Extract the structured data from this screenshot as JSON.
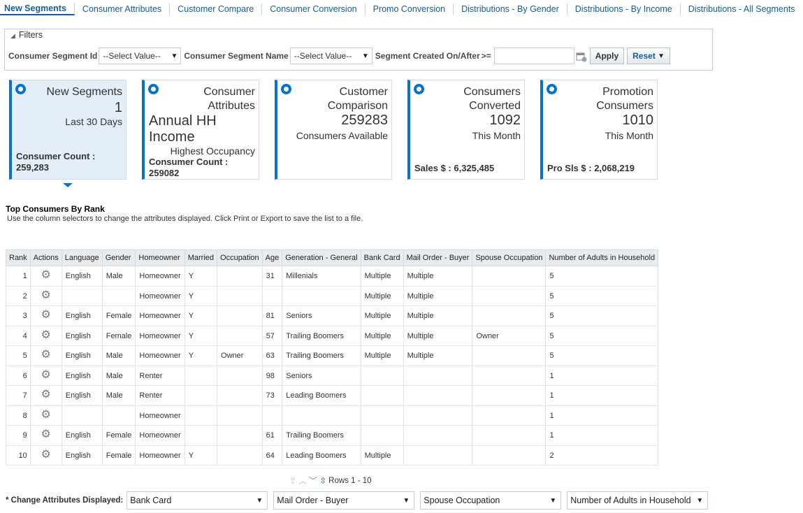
{
  "tabs": [
    "New Segments",
    "Consumer Attributes",
    "Customer Compare",
    "Consumer Conversion",
    "Promo Conversion",
    "Distributions - By Gender",
    "Distributions - By Income",
    "Distributions - All Segments"
  ],
  "filters": {
    "title": "Filters",
    "segment_id_label": "Consumer Segment Id",
    "segment_id_value": "--Select Value--",
    "segment_name_label": "Consumer Segment Name",
    "segment_name_value": "--Select Value--",
    "created_label": "Segment Created On/After",
    "created_op": ">=",
    "apply": "Apply",
    "reset": "Reset"
  },
  "cards": {
    "c1": {
      "title": "New Segments",
      "value": "1",
      "sub": "Last 30 Days",
      "bottom1": "Consumer Count :",
      "bottom2": "259,283"
    },
    "c2": {
      "title1": "Consumer",
      "title2": "Attributes",
      "value1": "Annual HH",
      "value2": "Income",
      "sub": "Highest Occupancy",
      "bottom1": "Consumer Count :",
      "bottom2": "259082"
    },
    "c3": {
      "title1": "Customer",
      "title2": "Comparison",
      "value": "259283",
      "sub": "Consumers Available"
    },
    "c4": {
      "title1": "Consumers",
      "title2": "Converted",
      "value": "1092",
      "sub": "This Month",
      "bottom": "Sales $ : 6,325,485"
    },
    "c5": {
      "title1": "Promotion",
      "title2": "Consumers",
      "value": "1010",
      "sub": "This Month",
      "bottom": "Pro Sls $ : 2,068,219"
    }
  },
  "section": {
    "title": "Top Consumers By Rank",
    "desc": "Use the column selectors to change the attributes displayed. Click Print or Export to save the list to a file."
  },
  "table": {
    "headers": [
      "Rank",
      "Actions",
      "Language",
      "Gender",
      "Homeowner",
      "Married",
      "Occupation",
      "Age",
      "Generation - General",
      "Bank Card",
      "Mail Order - Buyer",
      "Spouse Occupation",
      "Number of Adults in Household"
    ],
    "rows": [
      [
        "1",
        "",
        "English",
        "Male",
        "Homeowner",
        "Y",
        "",
        "31",
        "Millenials",
        "Multiple",
        "Multiple",
        "",
        "5"
      ],
      [
        "2",
        "",
        "",
        "",
        "Homeowner",
        "Y",
        "",
        "",
        "",
        "Multiple",
        "Multiple",
        "",
        "5"
      ],
      [
        "3",
        "",
        "English",
        "Female",
        "Homeowner",
        "Y",
        "",
        "81",
        "Seniors",
        "Multiple",
        "Multiple",
        "",
        "5"
      ],
      [
        "4",
        "",
        "English",
        "Female",
        "Homeowner",
        "Y",
        "",
        "57",
        "Trailing Boomers",
        "Multiple",
        "Multiple",
        "Owner",
        "5"
      ],
      [
        "5",
        "",
        "English",
        "Male",
        "Homeowner",
        "Y",
        "Owner",
        "63",
        "Trailing Boomers",
        "Multiple",
        "Multiple",
        "",
        "5"
      ],
      [
        "6",
        "",
        "English",
        "Male",
        "Renter",
        "",
        "",
        "98",
        "Seniors",
        "",
        "",
        "",
        "1"
      ],
      [
        "7",
        "",
        "English",
        "Male",
        "Renter",
        "",
        "",
        "73",
        "Leading Boomers",
        "",
        "",
        "",
        "1"
      ],
      [
        "8",
        "",
        "",
        "",
        "Homeowner",
        "",
        "",
        "",
        "",
        "",
        "",
        "",
        "1"
      ],
      [
        "9",
        "",
        "English",
        "Female",
        "Homeowner",
        "",
        "",
        "61",
        "Trailing Boomers",
        "",
        "",
        "",
        "1"
      ],
      [
        "10",
        "",
        "English",
        "Female",
        "Homeowner",
        "Y",
        "",
        "64",
        "Leading Boomers",
        "Multiple",
        "",
        "",
        "2"
      ]
    ]
  },
  "pager": {
    "rows": "Rows 1 - 10"
  },
  "attributes": {
    "label": "* Change Attributes Displayed:",
    "selects": [
      "Bank Card",
      "Mail Order - Buyer",
      "Spouse Occupation",
      "Number of Adults in Household"
    ]
  },
  "colors": {
    "accent": "#0572ce",
    "link": "#145c9e",
    "selected_card": "#e4eef8"
  }
}
